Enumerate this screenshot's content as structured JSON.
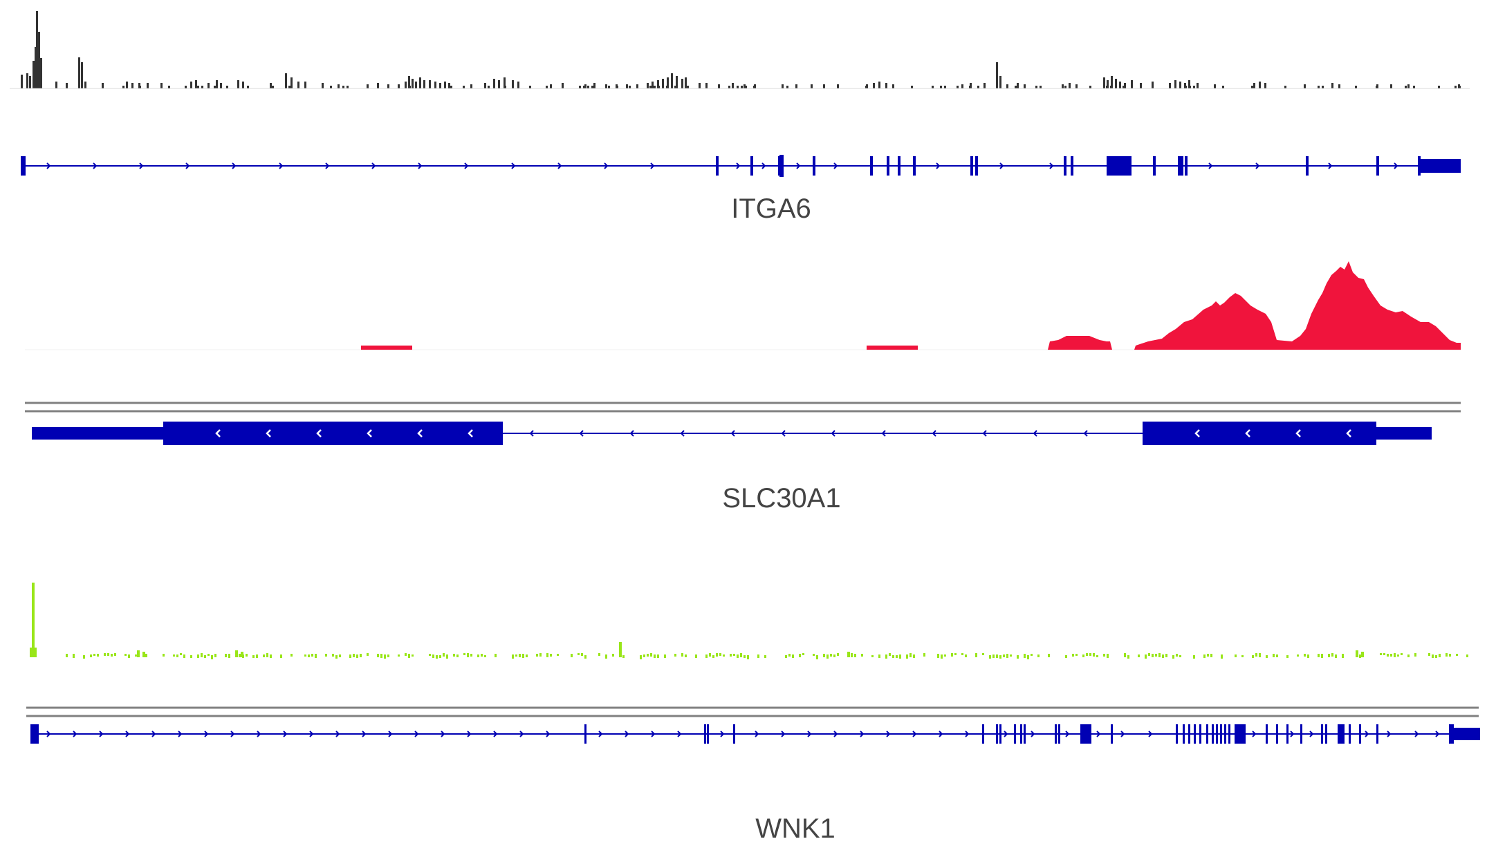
{
  "colors": {
    "gene": "#0000b3",
    "coverage_black": "#333333",
    "coverage_red": "#f0143c",
    "coverage_green": "#99e619",
    "separator": "#808080"
  },
  "panels": [
    {
      "id": "itga6",
      "gene_name": "ITGA6",
      "strand": "+",
      "coverage": {
        "color_key": "coverage_black",
        "style": "sparse bars",
        "max_relative": 1.0
      },
      "gene_model": {
        "direction_glyph": "chevron-right-icon",
        "has_exons": true
      }
    },
    {
      "id": "slc30a1",
      "gene_name": "SLC30A1",
      "strand": "-",
      "coverage": {
        "color_key": "coverage_red",
        "style": "filled area",
        "max_relative": 1.0
      },
      "gene_model": {
        "direction_glyph": "chevron-left-icon",
        "has_exons": true
      }
    },
    {
      "id": "wnk1",
      "gene_name": "WNK1",
      "strand": "+",
      "coverage": {
        "color_key": "coverage_green",
        "style": "sparse bars",
        "max_relative": 1.0
      },
      "gene_model": {
        "direction_glyph": "chevron-right-icon",
        "has_exons": true
      }
    }
  ]
}
